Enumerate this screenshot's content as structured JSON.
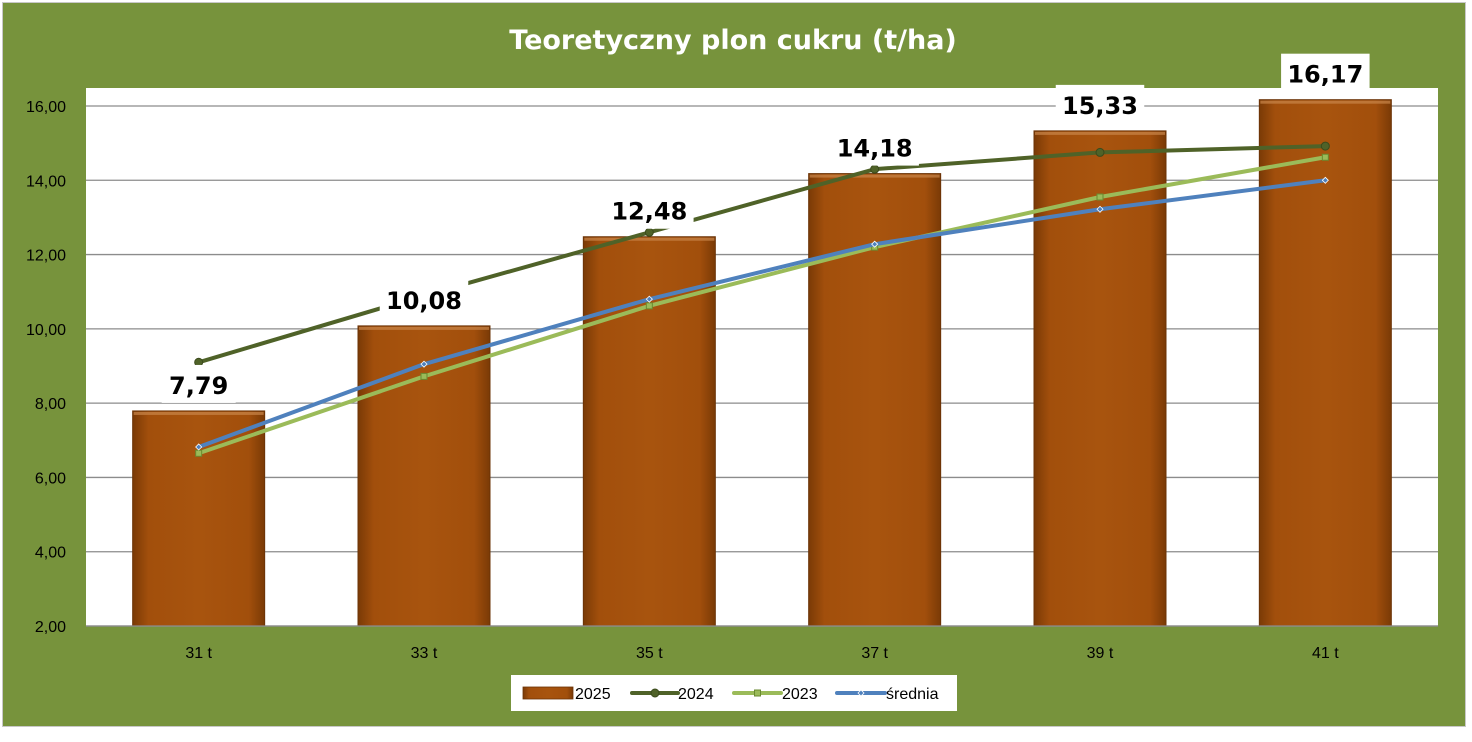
{
  "chart_data": {
    "type": "bar",
    "title": "Teoretyczny plon cukru (t/ha)",
    "xlabel": "",
    "ylabel": "",
    "categories": [
      "31 t",
      "33 t",
      "35 t",
      "37 t",
      "39 t",
      "41 t"
    ],
    "ylim": [
      2,
      16
    ],
    "yticks": [
      "2,00",
      "4,00",
      "6,00",
      "8,00",
      "10,00",
      "12,00",
      "14,00",
      "16,00"
    ],
    "grid": true,
    "legend_position": "bottom",
    "series": [
      {
        "name": "2025",
        "type": "bar",
        "color": "#a0500d",
        "values": [
          7.79,
          10.08,
          12.48,
          14.18,
          15.33,
          16.17
        ],
        "labels": [
          "7,79",
          "10,08",
          "12,48",
          "14,18",
          "15,33",
          "16,17"
        ]
      },
      {
        "name": "2024",
        "type": "line",
        "color": "#4f6228",
        "values": [
          9.1,
          10.9,
          12.6,
          14.3,
          14.75,
          14.92
        ]
      },
      {
        "name": "2023",
        "type": "line",
        "color": "#9bbb59",
        "values": [
          6.65,
          8.72,
          10.62,
          12.2,
          13.55,
          14.62
        ]
      },
      {
        "name": "średnia",
        "type": "line",
        "color": "#4f81bd",
        "values": [
          6.82,
          9.05,
          10.8,
          12.28,
          13.22,
          14.0
        ]
      }
    ]
  }
}
